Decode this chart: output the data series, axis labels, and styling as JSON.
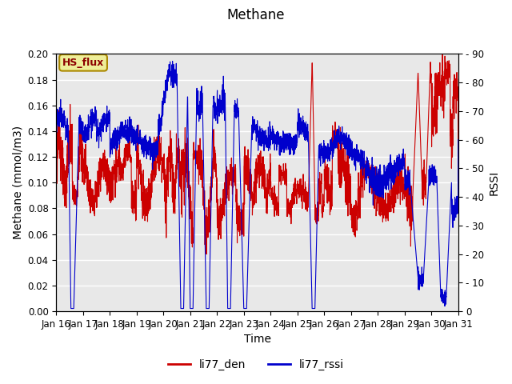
{
  "title": "Methane",
  "ylabel_left": "Methane (mmol/m3)",
  "ylabel_right": "RSSI",
  "xlabel": "Time",
  "ylim_left": [
    0.0,
    0.2
  ],
  "ylim_right": [
    0,
    90
  ],
  "yticks_left": [
    0.0,
    0.02,
    0.04,
    0.06,
    0.08,
    0.1,
    0.12,
    0.14,
    0.16,
    0.18,
    0.2
  ],
  "yticks_right": [
    0,
    10,
    20,
    30,
    40,
    50,
    60,
    70,
    80,
    90
  ],
  "xtick_labels": [
    "Jan 16",
    "Jan 17",
    "Jan 18",
    "Jan 19",
    "Jan 20",
    "Jan 21",
    "Jan 22",
    "Jan 23",
    "Jan 24",
    "Jan 25",
    "Jan 26",
    "Jan 27",
    "Jan 28",
    "Jan 29",
    "Jan 30",
    "Jan 31"
  ],
  "color_red": "#cc0000",
  "color_blue": "#0000cc",
  "legend_label_red": "li77_den",
  "legend_label_blue": "li77_rssi",
  "annotation_text": "HS_flux",
  "annotation_bg": "#eeee99",
  "annotation_border": "#aa8800",
  "bg_color": "#e8e8e8",
  "line_width": 0.8,
  "title_fontsize": 12,
  "axis_label_fontsize": 10,
  "tick_fontsize": 8.5,
  "legend_fontsize": 10
}
